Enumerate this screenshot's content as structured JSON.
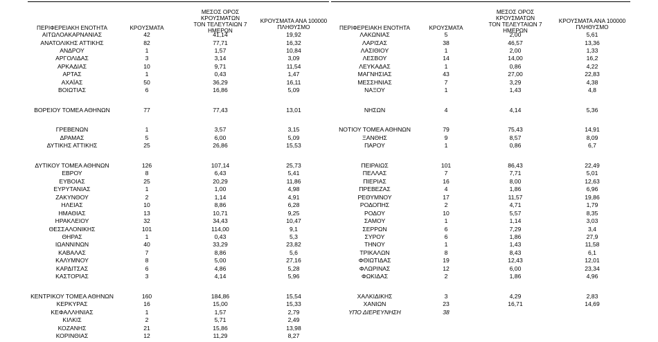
{
  "headers": {
    "region": "ΠΕΡΙΦΕΡΕΙΑΚΗ ΕΝΟΤΗΤΑ",
    "cases": "ΚΡΟΥΣΜΑΤΑ",
    "avg_line1": "ΜΕΣΟΣ ΟΡΟΣ ΚΡΟΥΣΜΑΤΩΝ",
    "avg_line2": "ΤΟΝ ΤΕΛΕΥΤΑΙΩΝ 7",
    "avg_line3": "ΗΜΕΡΩΝ",
    "per100k_line1": "ΚΡΟΥΣΜΑΤΑ ΑΝΑ 100000",
    "per100k_line2": "ΠΛΗΘΥΣΜΟ"
  },
  "left_rows": [
    {
      "row": 0,
      "region": "ΑΙΤΩΛΟΑΚΑΡΝΑΝΙΑΣ",
      "cases": "42",
      "avg": "41,14",
      "per100k": "19,92"
    },
    {
      "row": 1,
      "region": "ΑΝΑΤΟΛΙΚΗΣ ΑΤΤΙΚΗΣ",
      "cases": "82",
      "avg": "77,71",
      "per100k": "16,32"
    },
    {
      "row": 2,
      "region": "ΑΝΔΡΟΥ",
      "cases": "1",
      "avg": "1,57",
      "per100k": "10,84"
    },
    {
      "row": 3,
      "region": "ΑΡΓΟΛΙΔΑΣ",
      "cases": "3",
      "avg": "3,14",
      "per100k": "3,09"
    },
    {
      "row": 4,
      "region": "ΑΡΚΑΔΙΑΣ",
      "cases": "10",
      "avg": "9,71",
      "per100k": "11,54"
    },
    {
      "row": 5,
      "region": "ΑΡΤΑΣ",
      "cases": "1",
      "avg": "0,43",
      "per100k": "1,47"
    },
    {
      "row": 6,
      "region": "ΑΧΑΪΑΣ",
      "cases": "50",
      "avg": "36,29",
      "per100k": "16,11"
    },
    {
      "row": 7,
      "region": "ΒΟΙΩΤΙΑΣ",
      "cases": "6",
      "avg": "16,86",
      "per100k": "5,09"
    },
    {
      "row": 9.5,
      "region": "ΒΟΡΕΙΟΥ ΤΟΜΕΑ ΑΘΗΝΩΝ",
      "cases": "77",
      "avg": "77,43",
      "per100k": "13,01"
    },
    {
      "row": 12,
      "region": "ΓΡΕΒΕΝΩΝ",
      "cases": "1",
      "avg": "3,57",
      "per100k": "3,15"
    },
    {
      "row": 13,
      "region": "ΔΡΑΜΑΣ",
      "cases": "5",
      "avg": "6,00",
      "per100k": "5,09"
    },
    {
      "row": 14,
      "region": "ΔΥΤΙΚΗΣ ΑΤΤΙΚΗΣ",
      "cases": "25",
      "avg": "26,86",
      "per100k": "15,53"
    },
    {
      "row": 16.5,
      "region": "ΔΥΤΙΚΟΥ ΤΟΜΕΑ ΑΘΗΝΩΝ",
      "cases": "126",
      "avg": "107,14",
      "per100k": "25,73"
    },
    {
      "row": 17.5,
      "region": "ΕΒΡΟΥ",
      "cases": "8",
      "avg": "6,43",
      "per100k": "5,41"
    },
    {
      "row": 18.5,
      "region": "ΕΥΒΟΙΑΣ",
      "cases": "25",
      "avg": "20,29",
      "per100k": "11,86"
    },
    {
      "row": 19.5,
      "region": "ΕΥΡΥΤΑΝΙΑΣ",
      "cases": "1",
      "avg": "1,00",
      "per100k": "4,98"
    },
    {
      "row": 20.5,
      "region": "ΖΑΚΥΝΘΟΥ",
      "cases": "2",
      "avg": "1,14",
      "per100k": "4,91"
    },
    {
      "row": 21.5,
      "region": "ΗΛΕΙΑΣ",
      "cases": "10",
      "avg": "8,86",
      "per100k": "6,28"
    },
    {
      "row": 22.5,
      "region": "ΗΜΑΘΙΑΣ",
      "cases": "13",
      "avg": "10,71",
      "per100k": "9,25"
    },
    {
      "row": 23.5,
      "region": "ΗΡΑΚΛΕΙΟΥ",
      "cases": "32",
      "avg": "34,43",
      "per100k": "10,47"
    },
    {
      "row": 24.5,
      "region": "ΘΕΣΣΑΛΟΝΙΚΗΣ",
      "cases": "101",
      "avg": "114,00",
      "per100k": "9,1"
    },
    {
      "row": 25.5,
      "region": "ΘΗΡΑΣ",
      "cases": "1",
      "avg": "0,43",
      "per100k": "5,3"
    },
    {
      "row": 26.5,
      "region": "ΙΩΑΝΝΙΝΩΝ",
      "cases": "40",
      "avg": "33,29",
      "per100k": "23,82"
    },
    {
      "row": 27.5,
      "region": "ΚΑΒΑΛΑΣ",
      "cases": "7",
      "avg": "8,86",
      "per100k": "5,6"
    },
    {
      "row": 28.5,
      "region": "ΚΑΛΥΜΝΟΥ",
      "cases": "8",
      "avg": "5,00",
      "per100k": "27,16"
    },
    {
      "row": 29.5,
      "region": "ΚΑΡΔΙΤΣΑΣ",
      "cases": "6",
      "avg": "4,86",
      "per100k": "5,28"
    },
    {
      "row": 30.5,
      "region": "ΚΑΣΤΟΡΙΑΣ",
      "cases": "3",
      "avg": "4,14",
      "per100k": "5,96"
    },
    {
      "row": 33,
      "region": "ΚΕΝΤΡΙΚΟΥ ΤΟΜΕΑ ΑΘΗΝΩΝ",
      "cases": "160",
      "avg": "184,86",
      "per100k": "15,54"
    },
    {
      "row": 34,
      "region": "ΚΕΡΚΥΡΑΣ",
      "cases": "16",
      "avg": "15,00",
      "per100k": "15,33"
    },
    {
      "row": 35,
      "region": "ΚΕΦΑΛΛΗΝΙΑΣ",
      "cases": "1",
      "avg": "1,57",
      "per100k": "2,79"
    },
    {
      "row": 36,
      "region": "ΚΙΛΚΙΣ",
      "cases": "2",
      "avg": "5,71",
      "per100k": "2,49"
    },
    {
      "row": 37,
      "region": "ΚΟΖΑΝΗΣ",
      "cases": "21",
      "avg": "15,86",
      "per100k": "13,98"
    },
    {
      "row": 38,
      "region": "ΚΟΡΙΝΘΙΑΣ",
      "cases": "12",
      "avg": "11,29",
      "per100k": "8,27"
    }
  ],
  "right_rows": [
    {
      "row": 0,
      "region": "ΛΑΚΩΝΙΑΣ",
      "cases": "5",
      "avg": "2,00",
      "per100k": "5,61"
    },
    {
      "row": 1,
      "region": "ΛΑΡΙΣΑΣ",
      "cases": "38",
      "avg": "46,57",
      "per100k": "13,36"
    },
    {
      "row": 2,
      "region": "ΛΑΣΙΘΙΟΥ",
      "cases": "1",
      "avg": "2,00",
      "per100k": "1,33"
    },
    {
      "row": 3,
      "region": "ΛΕΣΒΟΥ",
      "cases": "14",
      "avg": "14,00",
      "per100k": "16,2"
    },
    {
      "row": 4,
      "region": "ΛΕΥΚΑΔΑΣ",
      "cases": "1",
      "avg": "0,86",
      "per100k": "4,22"
    },
    {
      "row": 5,
      "region": "ΜΑΓΝΗΣΙΑΣ",
      "cases": "43",
      "avg": "27,00",
      "per100k": "22,83"
    },
    {
      "row": 6,
      "region": "ΜΕΣΣΗΝΙΑΣ",
      "cases": "7",
      "avg": "3,29",
      "per100k": "4,38"
    },
    {
      "row": 7,
      "region": "ΝΑΞΟΥ",
      "cases": "1",
      "avg": "1,43",
      "per100k": "4,8"
    },
    {
      "row": 9.5,
      "region": "ΝΗΣΩΝ",
      "cases": "4",
      "avg": "4,14",
      "per100k": "5,36"
    },
    {
      "row": 12,
      "region": "ΝΟΤΙΟΥ ΤΟΜΕΑ ΑΘΗΝΩΝ",
      "cases": "79",
      "avg": "75,43",
      "per100k": "14,91"
    },
    {
      "row": 13,
      "region": "ΞΑΝΘΗΣ",
      "cases": "9",
      "avg": "8,57",
      "per100k": "8,09"
    },
    {
      "row": 14,
      "region": "ΠΑΡΟΥ",
      "cases": "1",
      "avg": "0,86",
      "per100k": "6,7"
    },
    {
      "row": 16.5,
      "region": "ΠΕΙΡΑΙΩΣ",
      "cases": "101",
      "avg": "86,43",
      "per100k": "22,49"
    },
    {
      "row": 17.5,
      "region": "ΠΕΛΛΑΣ",
      "cases": "7",
      "avg": "7,71",
      "per100k": "5,01"
    },
    {
      "row": 18.5,
      "region": "ΠΙΕΡΙΑΣ",
      "cases": "16",
      "avg": "8,00",
      "per100k": "12,63"
    },
    {
      "row": 19.5,
      "region": "ΠΡΕΒΕΖΑΣ",
      "cases": "4",
      "avg": "1,86",
      "per100k": "6,96"
    },
    {
      "row": 20.5,
      "region": "ΡΕΘΥΜΝΟΥ",
      "cases": "17",
      "avg": "11,57",
      "per100k": "19,86"
    },
    {
      "row": 21.5,
      "region": "ΡΟΔΟΠΗΣ",
      "cases": "2",
      "avg": "4,71",
      "per100k": "1,79"
    },
    {
      "row": 22.5,
      "region": "ΡΟΔΟΥ",
      "cases": "10",
      "avg": "5,57",
      "per100k": "8,35"
    },
    {
      "row": 23.5,
      "region": "ΣΑΜΟΥ",
      "cases": "1",
      "avg": "1,14",
      "per100k": "3,03"
    },
    {
      "row": 24.5,
      "region": "ΣΕΡΡΩΝ",
      "cases": "6",
      "avg": "7,29",
      "per100k": "3,4"
    },
    {
      "row": 25.5,
      "region": "ΣΥΡΟΥ",
      "cases": "6",
      "avg": "1,86",
      "per100k": "27,9"
    },
    {
      "row": 26.5,
      "region": "ΤΗΝΟΥ",
      "cases": "1",
      "avg": "1,43",
      "per100k": "11,58"
    },
    {
      "row": 27.5,
      "region": "ΤΡΙΚΑΛΩΝ",
      "cases": "8",
      "avg": "8,43",
      "per100k": "6,1"
    },
    {
      "row": 28.5,
      "region": "ΦΘΙΩΤΙΔΑΣ",
      "cases": "19",
      "avg": "12,43",
      "per100k": "12,01"
    },
    {
      "row": 29.5,
      "region": "ΦΛΩΡΙΝΑΣ",
      "cases": "12",
      "avg": "6,00",
      "per100k": "23,34"
    },
    {
      "row": 30.5,
      "region": "ΦΩΚΙΔΑΣ",
      "cases": "2",
      "avg": "1,86",
      "per100k": "4,96"
    },
    {
      "row": 33,
      "region": "ΧΑΛΚΙΔΙΚΗΣ",
      "cases": "3",
      "avg": "4,29",
      "per100k": "2,83"
    },
    {
      "row": 34,
      "region": "ΧΑΝΙΩΝ",
      "cases": "23",
      "avg": "16,71",
      "per100k": "14,69"
    },
    {
      "row": 35,
      "region": "ΥΠΟ ΔΙΕΡΕΥΝΗΣΗ",
      "cases": "38",
      "avg": "",
      "per100k": "",
      "italic": true
    }
  ]
}
